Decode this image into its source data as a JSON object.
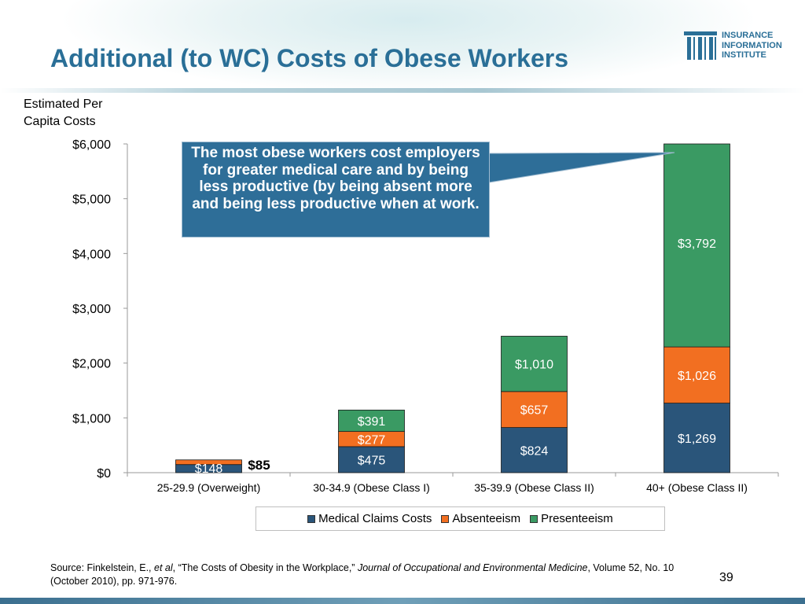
{
  "slide": {
    "title": "Additional (to WC) Costs of Obese Workers",
    "page_number": "39"
  },
  "logo": {
    "line1": "INSURANCE",
    "line2": "INFORMATION",
    "line3": "INSTITUTE"
  },
  "callout": {
    "text": "The most obese workers cost employers for greater medical care and by being less productive (by being absent more and being less productive when at work."
  },
  "source": {
    "prefix": "Source: Finkelstein, E., ",
    "etal": "et al",
    "middle": ", “The Costs of Obesity in the Workplace,” ",
    "journal": "Journal of Occupational and Environmental Medicine",
    "suffix": ", Volume 52, No. 10 (October 2010), pp. 971-976."
  },
  "colors": {
    "medical": "#2a557a",
    "absenteeism": "#f26f21",
    "presenteeism": "#3a9a63",
    "title": "#2a6f97"
  },
  "chart_data": {
    "type": "bar",
    "stacked": true,
    "ylabel": "Estimated Per Capita Costs",
    "xlabel": "",
    "ylim": [
      0,
      6000
    ],
    "y_ticks": [
      "$0",
      "$1,000",
      "$2,000",
      "$3,000",
      "$4,000",
      "$5,000",
      "$6,000"
    ],
    "y_tick_values": [
      0,
      1000,
      2000,
      3000,
      4000,
      5000,
      6000
    ],
    "categories": [
      "25-29.9 (Overweight)",
      "30-34.9 (Obese Class I)",
      "35-39.9 (Obese Class II)",
      "40+ (Obese Class II)"
    ],
    "series": [
      {
        "name": "Medical Claims Costs",
        "values": [
          148,
          475,
          824,
          1269
        ],
        "labels": [
          "$148",
          "$475",
          "$824",
          "$1,269"
        ]
      },
      {
        "name": "Absenteeism",
        "values": [
          85,
          277,
          657,
          1026
        ],
        "labels": [
          "$85",
          "$277",
          "$657",
          "$1,026"
        ]
      },
      {
        "name": "Presenteeism",
        "values": [
          0,
          391,
          1010,
          3792
        ],
        "labels": [
          "",
          "$391",
          "$1,010",
          "$3,792"
        ]
      }
    ],
    "legend": "bottom",
    "grid": false
  }
}
